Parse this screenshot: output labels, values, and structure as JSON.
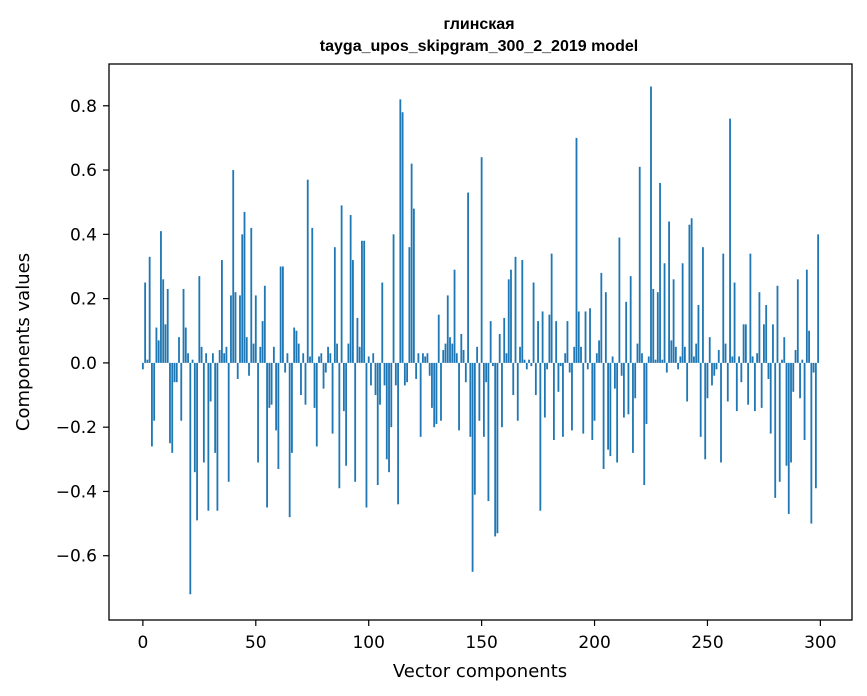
{
  "chart_data": {
    "type": "bar",
    "title": "глинская",
    "subtitle": "tayga_upos_skipgram_300_2_2019 model",
    "xlabel": "Vector components",
    "ylabel": "Components values",
    "xlim": [
      -15,
      314
    ],
    "ylim": [
      -0.8,
      0.93
    ],
    "xticks": [
      0,
      50,
      100,
      150,
      200,
      250,
      300
    ],
    "yticks": [
      -0.6,
      -0.4,
      -0.2,
      0.0,
      0.2,
      0.4,
      0.6,
      0.8
    ],
    "xtick_labels": [
      "0",
      "50",
      "100",
      "150",
      "200",
      "250",
      "300"
    ],
    "ytick_labels": [
      "−0.6",
      "−0.4",
      "−0.2",
      "0.0",
      "0.2",
      "0.4",
      "0.6",
      "0.8"
    ],
    "bar_color": "#1f77b4",
    "grid": false,
    "values": [
      -0.02,
      0.25,
      0.01,
      0.33,
      -0.26,
      -0.18,
      0.11,
      0.07,
      0.41,
      0.26,
      0.12,
      0.23,
      -0.25,
      -0.28,
      -0.06,
      -0.06,
      0.08,
      -0.18,
      0.23,
      0.11,
      0.03,
      -0.72,
      0.01,
      -0.34,
      -0.49,
      0.27,
      0.05,
      -0.31,
      0.03,
      -0.46,
      -0.12,
      0.03,
      -0.28,
      -0.46,
      0.04,
      0.32,
      0.03,
      0.05,
      -0.37,
      0.21,
      0.6,
      0.22,
      -0.05,
      0.21,
      0.4,
      0.47,
      0.08,
      -0.04,
      0.42,
      0.06,
      0.21,
      -0.31,
      0.05,
      0.13,
      0.24,
      -0.45,
      -0.14,
      -0.13,
      0.05,
      -0.21,
      -0.33,
      0.3,
      0.3,
      -0.03,
      0.03,
      -0.48,
      -0.28,
      0.11,
      0.1,
      0.06,
      -0.1,
      0.03,
      -0.13,
      0.57,
      0.02,
      0.42,
      -0.14,
      -0.26,
      0.02,
      0.03,
      -0.08,
      -0.03,
      0.05,
      0.03,
      -0.22,
      0.36,
      0.06,
      -0.39,
      0.49,
      -0.15,
      -0.32,
      0.06,
      0.46,
      0.32,
      -0.37,
      0.14,
      0.05,
      0.38,
      0.38,
      -0.45,
      0.02,
      -0.07,
      0.03,
      -0.1,
      -0.38,
      -0.13,
      0.25,
      -0.07,
      -0.3,
      -0.34,
      -0.2,
      0.4,
      -0.07,
      -0.44,
      0.82,
      0.78,
      -0.07,
      -0.06,
      0.36,
      0.62,
      0.48,
      -0.05,
      0.03,
      -0.23,
      0.03,
      0.02,
      0.03,
      -0.04,
      -0.14,
      -0.2,
      -0.19,
      0.15,
      -0.18,
      0.04,
      0.06,
      0.21,
      0.08,
      0.06,
      0.29,
      0.03,
      -0.21,
      0.09,
      0.04,
      -0.06,
      0.53,
      -0.23,
      -0.65,
      -0.41,
      0.05,
      -0.18,
      0.64,
      -0.23,
      -0.06,
      -0.43,
      0.13,
      -0.01,
      -0.54,
      -0.53,
      0.09,
      -0.2,
      0.14,
      0.03,
      0.26,
      0.29,
      -0.1,
      0.33,
      -0.18,
      0.05,
      0.32,
      0.01,
      -0.02,
      0.01,
      -0.01,
      0.25,
      -0.1,
      0.13,
      -0.46,
      0.16,
      -0.17,
      -0.02,
      0.15,
      0.34,
      -0.24,
      0.13,
      -0.09,
      -0.01,
      -0.23,
      0.03,
      0.13,
      -0.03,
      -0.21,
      0.05,
      0.7,
      0.16,
      0.05,
      -0.22,
      0.16,
      -0.02,
      0.17,
      -0.24,
      -0.18,
      0.03,
      0.07,
      0.28,
      -0.33,
      0.22,
      -0.27,
      -0.29,
      0.02,
      -0.08,
      -0.31,
      0.39,
      -0.04,
      -0.17,
      0.19,
      -0.16,
      0.27,
      -0.28,
      -0.11,
      0.06,
      0.61,
      0.03,
      -0.38,
      -0.19,
      0.02,
      0.86,
      0.23,
      0.01,
      0.22,
      0.56,
      0.01,
      0.31,
      -0.03,
      0.44,
      0.07,
      0.26,
      0.05,
      -0.02,
      0.02,
      0.31,
      0.05,
      -0.12,
      0.43,
      0.45,
      0.02,
      0.06,
      0.18,
      -0.23,
      0.36,
      -0.3,
      -0.11,
      0.08,
      -0.07,
      -0.04,
      -0.02,
      0.04,
      -0.31,
      0.34,
      0.06,
      -0.12,
      0.76,
      0.02,
      0.25,
      -0.15,
      0.02,
      -0.06,
      0.12,
      0.12,
      -0.13,
      0.34,
      0.02,
      -0.15,
      0.03,
      0.22,
      -0.14,
      0.12,
      0.18,
      -0.05,
      -0.22,
      0.12,
      -0.42,
      0.24,
      -0.37,
      0.01,
      0.08,
      -0.32,
      -0.47,
      -0.31,
      -0.09,
      0.04,
      0.26,
      -0.11,
      0.01,
      -0.24,
      0.29,
      0.1,
      -0.5,
      -0.03,
      -0.39,
      0.4
    ]
  }
}
